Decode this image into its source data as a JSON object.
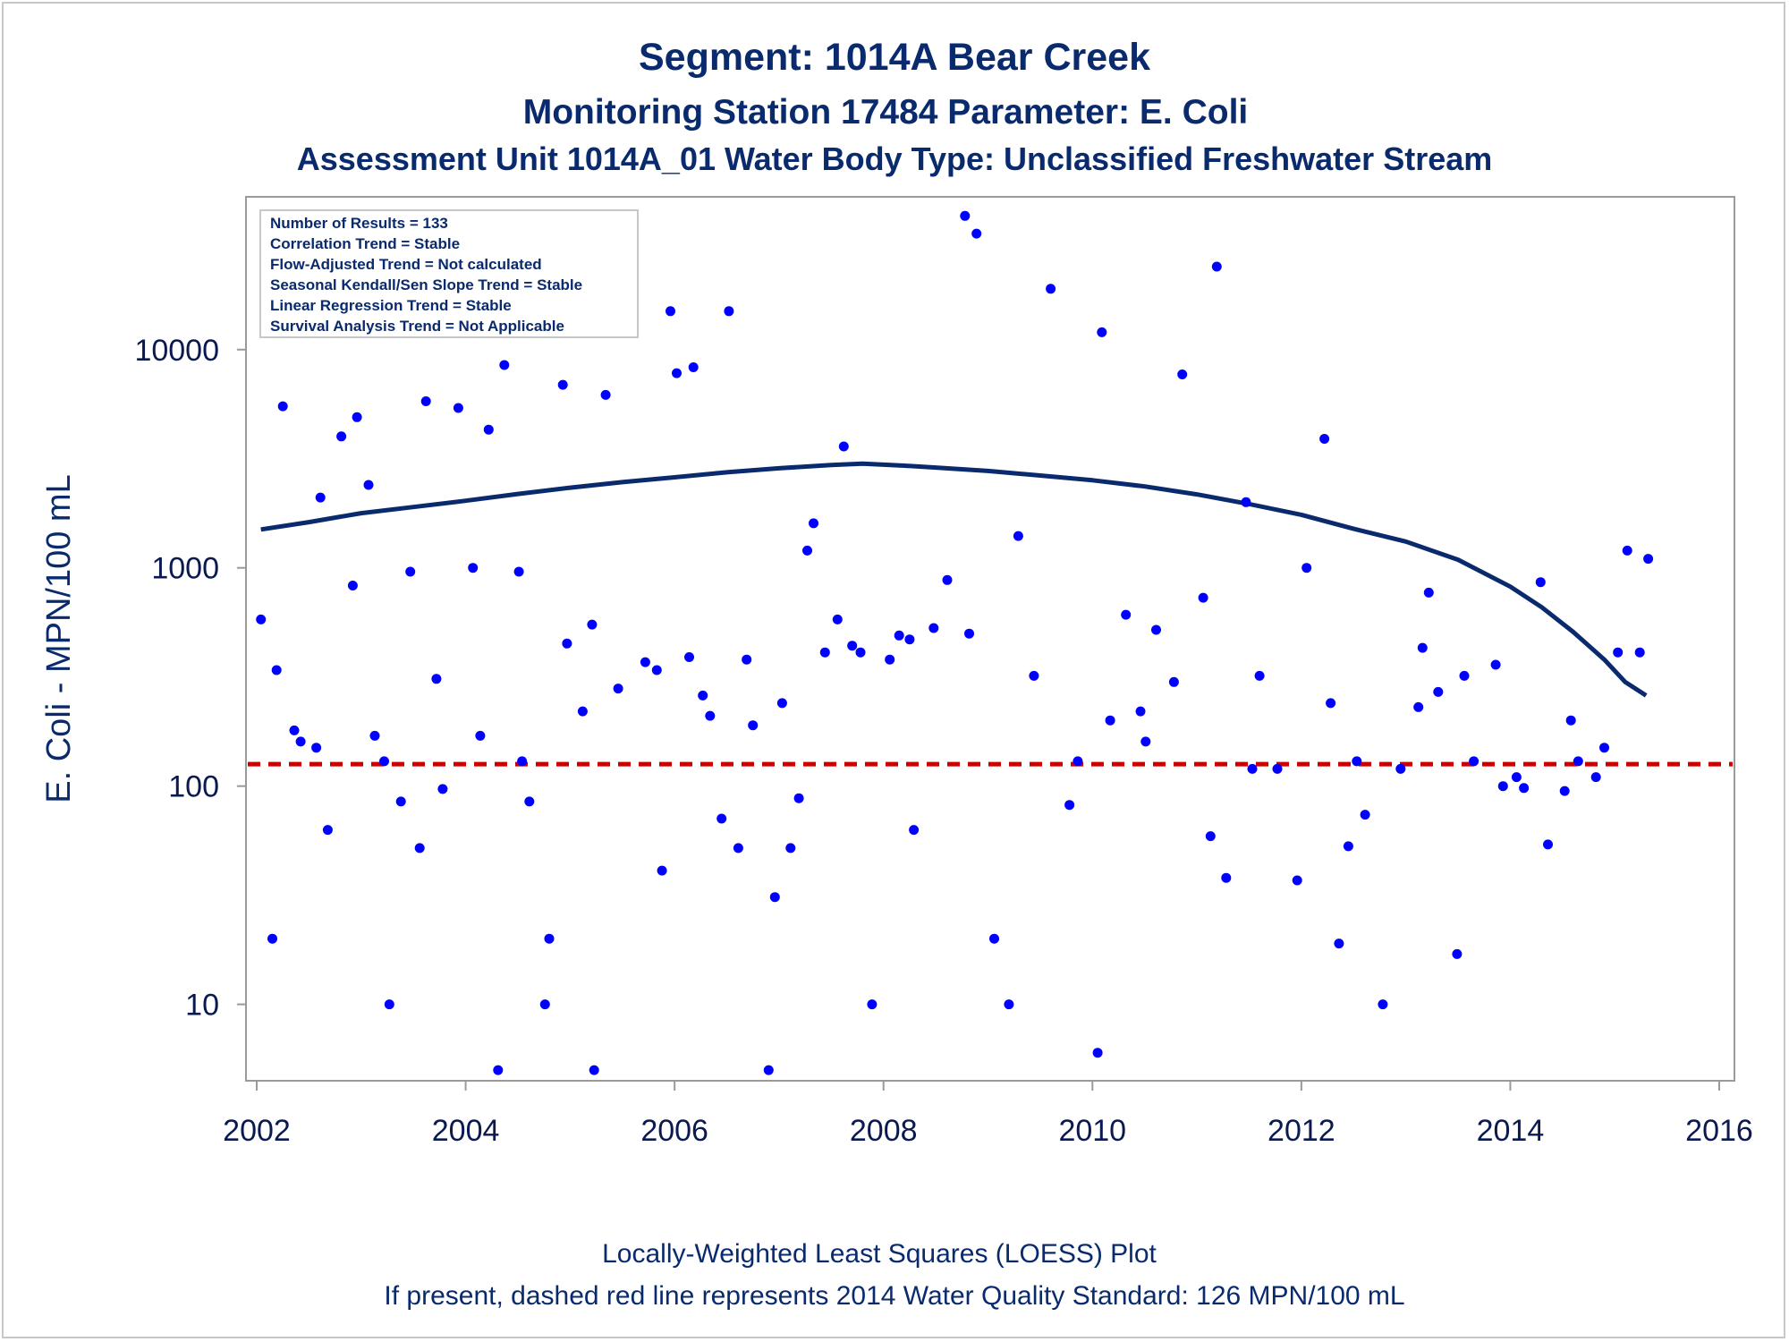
{
  "title_lines": [
    "Segment: 1014A  Bear Creek",
    "Monitoring Station 17484 Parameter: E. Coli",
    "Assessment Unit 1014A_01   Water Body Type: Unclassified Freshwater Stream"
  ],
  "stats_box": [
    "Number of Results = 133",
    "Correlation Trend = Stable",
    "Flow-Adjusted Trend = Not calculated",
    "Seasonal Kendall/Sen Slope Trend = Stable",
    "Linear Regression Trend = Stable",
    "Survival Analysis Trend = Not Applicable"
  ],
  "footnotes": [
    "Locally-Weighted Least Squares (LOESS) Plot",
    "If present, dashed red line represents 2014 Water Quality Standard: 126 MPN/100 mL"
  ],
  "colors": {
    "points": "#0000ff",
    "loess": "#0a2a6e",
    "standard": "#cc0000",
    "text": "#0a2a6e"
  },
  "chart_data": {
    "type": "scatter",
    "ylabel": "E. Coli - MPN/100 mL",
    "xlabel": "",
    "xlim": [
      2002,
      2016
    ],
    "ylim_log10": [
      0.65,
      4.7
    ],
    "yscale": "log",
    "xticks": [
      2002,
      2004,
      2006,
      2008,
      2010,
      2012,
      2014,
      2016
    ],
    "yticks": [
      10,
      100,
      1000,
      10000
    ],
    "ytick_labels": [
      "10",
      "100",
      "1000",
      "10000"
    ],
    "standard_line": 126,
    "points": [
      [
        2002.04,
        580
      ],
      [
        2002.15,
        20
      ],
      [
        2002.19,
        340
      ],
      [
        2002.25,
        5500
      ],
      [
        2002.36,
        180
      ],
      [
        2002.42,
        160
      ],
      [
        2002.57,
        150
      ],
      [
        2002.61,
        2100
      ],
      [
        2002.68,
        63
      ],
      [
        2002.81,
        4000
      ],
      [
        2002.92,
        830
      ],
      [
        2002.96,
        4900
      ],
      [
        2003.07,
        2400
      ],
      [
        2003.13,
        170
      ],
      [
        2003.22,
        130
      ],
      [
        2003.27,
        10
      ],
      [
        2003.38,
        85
      ],
      [
        2003.47,
        960
      ],
      [
        2003.56,
        52
      ],
      [
        2003.62,
        5800
      ],
      [
        2003.72,
        310
      ],
      [
        2003.78,
        97
      ],
      [
        2003.88,
        15000
      ],
      [
        2003.93,
        5400
      ],
      [
        2004.07,
        1000
      ],
      [
        2004.14,
        170
      ],
      [
        2004.22,
        4300
      ],
      [
        2004.31,
        5
      ],
      [
        2004.37,
        8500
      ],
      [
        2004.51,
        960
      ],
      [
        2004.54,
        130
      ],
      [
        2004.61,
        85
      ],
      [
        2004.76,
        10
      ],
      [
        2004.8,
        20
      ],
      [
        2004.93,
        6900
      ],
      [
        2004.97,
        450
      ],
      [
        2005.12,
        220
      ],
      [
        2005.21,
        550
      ],
      [
        2005.23,
        5
      ],
      [
        2005.34,
        6200
      ],
      [
        2005.46,
        280
      ],
      [
        2005.72,
        370
      ],
      [
        2005.83,
        340
      ],
      [
        2005.88,
        41
      ],
      [
        2005.96,
        15000
      ],
      [
        2006.02,
        7800
      ],
      [
        2006.14,
        390
      ],
      [
        2006.18,
        8300
      ],
      [
        2006.27,
        260
      ],
      [
        2006.34,
        210
      ],
      [
        2006.45,
        71
      ],
      [
        2006.52,
        15000
      ],
      [
        2006.61,
        52
      ],
      [
        2006.69,
        380
      ],
      [
        2006.75,
        190
      ],
      [
        2006.9,
        5
      ],
      [
        2006.96,
        31
      ],
      [
        2007.03,
        240
      ],
      [
        2007.11,
        52
      ],
      [
        2007.19,
        88
      ],
      [
        2007.27,
        1200
      ],
      [
        2007.33,
        1600
      ],
      [
        2007.44,
        410
      ],
      [
        2007.56,
        580
      ],
      [
        2007.62,
        3600
      ],
      [
        2007.7,
        440
      ],
      [
        2007.78,
        410
      ],
      [
        2007.89,
        10
      ],
      [
        2008.06,
        380
      ],
      [
        2008.15,
        490
      ],
      [
        2008.25,
        470
      ],
      [
        2008.29,
        63
      ],
      [
        2008.48,
        530
      ],
      [
        2008.61,
        880
      ],
      [
        2008.78,
        41000
      ],
      [
        2008.82,
        500
      ],
      [
        2008.89,
        34000
      ],
      [
        2009.06,
        20
      ],
      [
        2009.2,
        10
      ],
      [
        2009.29,
        1400
      ],
      [
        2009.44,
        320
      ],
      [
        2009.6,
        19000
      ],
      [
        2009.78,
        82
      ],
      [
        2009.86,
        130
      ],
      [
        2010.05,
        6
      ],
      [
        2010.09,
        12000
      ],
      [
        2010.17,
        200
      ],
      [
        2010.32,
        610
      ],
      [
        2010.46,
        220
      ],
      [
        2010.51,
        160
      ],
      [
        2010.61,
        520
      ],
      [
        2010.78,
        300
      ],
      [
        2010.86,
        7700
      ],
      [
        2011.06,
        730
      ],
      [
        2011.13,
        59
      ],
      [
        2011.19,
        24000
      ],
      [
        2011.28,
        38
      ],
      [
        2011.47,
        2000
      ],
      [
        2011.53,
        120
      ],
      [
        2011.6,
        320
      ],
      [
        2011.77,
        120
      ],
      [
        2011.96,
        37
      ],
      [
        2012.05,
        1000
      ],
      [
        2012.22,
        3900
      ],
      [
        2012.28,
        240
      ],
      [
        2012.36,
        19
      ],
      [
        2012.45,
        53
      ],
      [
        2012.53,
        130
      ],
      [
        2012.61,
        74
      ],
      [
        2012.78,
        10
      ],
      [
        2012.95,
        120
      ],
      [
        2013.12,
        230
      ],
      [
        2013.16,
        430
      ],
      [
        2013.22,
        770
      ],
      [
        2013.31,
        270
      ],
      [
        2013.49,
        17
      ],
      [
        2013.56,
        320
      ],
      [
        2013.65,
        130
      ],
      [
        2013.86,
        360
      ],
      [
        2013.93,
        100
      ],
      [
        2014.06,
        110
      ],
      [
        2014.13,
        98
      ],
      [
        2014.29,
        860
      ],
      [
        2014.36,
        54
      ],
      [
        2014.52,
        95
      ],
      [
        2014.58,
        200
      ],
      [
        2014.65,
        130
      ],
      [
        2014.82,
        110
      ],
      [
        2014.9,
        150
      ],
      [
        2015.03,
        410
      ],
      [
        2015.12,
        1200
      ],
      [
        2015.24,
        410
      ],
      [
        2015.32,
        1100
      ]
    ],
    "loess": [
      [
        2002.04,
        1500
      ],
      [
        2002.5,
        1620
      ],
      [
        2003.0,
        1780
      ],
      [
        2003.5,
        1900
      ],
      [
        2004.0,
        2030
      ],
      [
        2004.5,
        2180
      ],
      [
        2005.0,
        2330
      ],
      [
        2005.5,
        2470
      ],
      [
        2006.0,
        2600
      ],
      [
        2006.5,
        2740
      ],
      [
        2007.0,
        2860
      ],
      [
        2007.5,
        2960
      ],
      [
        2007.8,
        3000
      ],
      [
        2008.2,
        2940
      ],
      [
        2008.5,
        2880
      ],
      [
        2009.0,
        2780
      ],
      [
        2009.5,
        2650
      ],
      [
        2010.0,
        2520
      ],
      [
        2010.5,
        2360
      ],
      [
        2011.0,
        2170
      ],
      [
        2011.5,
        1960
      ],
      [
        2012.0,
        1750
      ],
      [
        2012.5,
        1510
      ],
      [
        2013.0,
        1320
      ],
      [
        2013.5,
        1090
      ],
      [
        2014.0,
        820
      ],
      [
        2014.3,
        660
      ],
      [
        2014.6,
        510
      ],
      [
        2014.9,
        380
      ],
      [
        2015.1,
        300
      ],
      [
        2015.3,
        260
      ]
    ]
  }
}
